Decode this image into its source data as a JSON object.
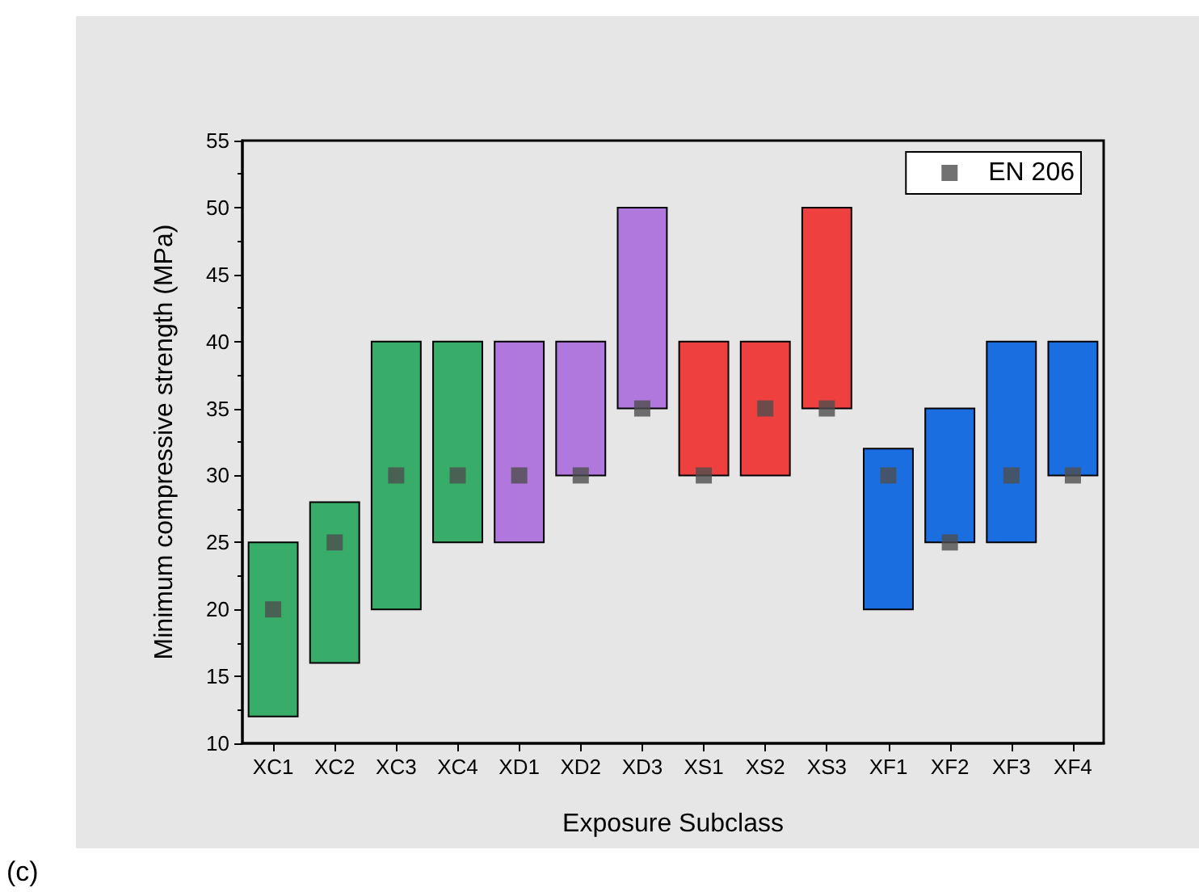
{
  "chart_data": {
    "type": "bar",
    "xlabel": "Exposure Subclass",
    "ylabel": "Minimum compressive strength (MPa)",
    "categories": [
      "XC1",
      "XC2",
      "XC3",
      "XC4",
      "XD1",
      "XD2",
      "XD3",
      "XS1",
      "XS2",
      "XS3",
      "XF1",
      "XF2",
      "XF3",
      "XF4"
    ],
    "series": [
      {
        "base": [
          12,
          16,
          20,
          25,
          25,
          30,
          35,
          30,
          30,
          35,
          20,
          25,
          25,
          30
        ],
        "values": [
          13,
          12,
          20,
          15,
          15,
          10,
          15,
          10,
          10,
          15,
          12,
          10,
          15,
          10
        ],
        "colors": [
          "#38ad6a",
          "#38ad6a",
          "#38ad6a",
          "#38ad6a",
          "#b077dd",
          "#b077dd",
          "#b077dd",
          "#ef4040",
          "#ef4040",
          "#ef4040",
          "#1a6ee0",
          "#1a6ee0",
          "#1a6ee0",
          "#1a6ee0"
        ]
      },
      {
        "type": "scatter",
        "name": "EN 206",
        "color": "#4d4d4d",
        "x": [
          "XC1",
          "XC2",
          "XC3",
          "XC4",
          "XD1",
          "XD2",
          "XD3",
          "XS1",
          "XS2",
          "XS3",
          "XF1",
          "XF2",
          "XF3",
          "XF4"
        ],
        "values": [
          20,
          25,
          30,
          30,
          30,
          30,
          35,
          30,
          35,
          35,
          30,
          25,
          30,
          30
        ]
      }
    ],
    "ylim": [
      10,
      55
    ],
    "yticks": [
      10,
      15,
      20,
      25,
      30,
      35,
      40,
      45,
      50,
      55
    ],
    "marker": "square",
    "legend": "top right",
    "grid": false,
    "annotations": [
      "(c)"
    ]
  }
}
